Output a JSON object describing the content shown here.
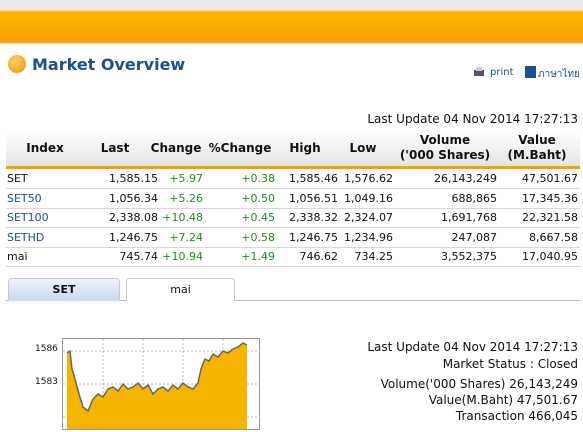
{
  "header": {
    "title": "Market Overview",
    "print": "print",
    "language": "ภาษาไทย"
  },
  "last_update": "Last Update 04 Nov 2014 17:27:13",
  "table": {
    "columns": [
      [
        "Index"
      ],
      [
        "Last"
      ],
      [
        "Change"
      ],
      [
        "%Change"
      ],
      [
        "High"
      ],
      [
        "Low"
      ],
      [
        "Volume",
        "('000 Shares)"
      ],
      [
        "Value",
        "(M.Baht)"
      ]
    ],
    "rows": [
      [
        "SET",
        "1,585.15",
        "+5.97",
        "+0.38",
        "1,585.46",
        "1,576.62",
        "26,143,249",
        "47,501.67"
      ],
      [
        "SET50",
        "1,056.34",
        "+5.26",
        "+0.50",
        "1,056.51",
        "1,049.16",
        "688,865",
        "17,345.36"
      ],
      [
        "SET100",
        "2,338.08",
        "+10.48",
        "+0.45",
        "2,338.32",
        "2,324.07",
        "1,691,768",
        "22,321.58"
      ],
      [
        "SETHD",
        "1,246.75",
        "+7.24",
        "+0.58",
        "1,246.75",
        "1,234.96",
        "247,087",
        "8,667.58"
      ],
      [
        "mai",
        "745.74",
        "+10.94",
        "+1.49",
        "746.62",
        "734.25",
        "3,552,375",
        "17,040.95"
      ]
    ]
  },
  "tabs": [
    "SET",
    "mai"
  ],
  "chart": {
    "yticks": [
      "1586",
      "1583"
    ]
  },
  "summary": {
    "last_update": "Last Update 04 Nov 2014 17:27:13",
    "market_status": "Market Status : Closed",
    "volume": "Volume('000 Shares) 26,143,249",
    "value": "Value(M.Baht) 47,501.67",
    "transaction": "Transaction 466,045"
  }
}
